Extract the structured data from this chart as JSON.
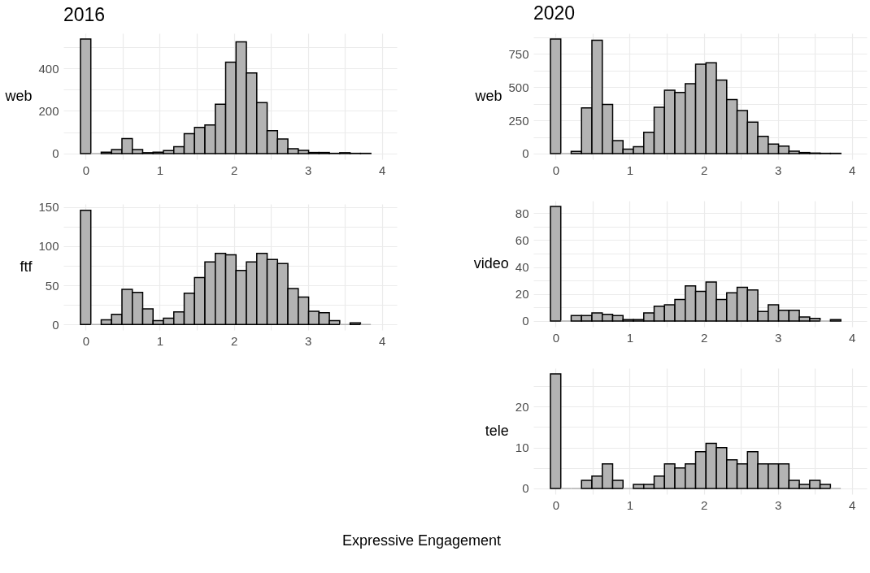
{
  "chart_data": [
    {
      "type": "histogram",
      "title": "2016",
      "ylabel": "web",
      "color": "#b3b3b3",
      "grid": true,
      "bins": [
        -0.07,
        0.07,
        0.21,
        0.35,
        0.49,
        0.63,
        0.77,
        0.91,
        1.05,
        1.19,
        1.33,
        1.47,
        1.61,
        1.75,
        1.89,
        2.03,
        2.17,
        2.31,
        2.45,
        2.59,
        2.73,
        2.87,
        3.01,
        3.15,
        3.29,
        3.43,
        3.57,
        3.71,
        3.85
      ],
      "values": [
        537,
        0,
        6,
        19,
        70,
        19,
        4,
        6,
        14,
        32,
        93,
        123,
        134,
        231,
        429,
        524,
        378,
        239,
        107,
        68,
        23,
        15,
        5,
        5,
        1,
        4,
        1,
        1
      ],
      "xlim": [
        -0.3,
        4.2
      ],
      "xticks": [
        0,
        {
          "value": 0.5,
          "label": null
        },
        1,
        {
          "value": 1.5,
          "label": null
        },
        2,
        {
          "value": 2.5,
          "label": null
        },
        3,
        {
          "value": 3.5,
          "label": null
        },
        4
      ],
      "ylim": [
        -27,
        564
      ],
      "yticks": [
        0,
        {
          "value": 100,
          "label": null
        },
        200,
        {
          "value": 300,
          "label": null
        },
        400,
        {
          "value": 500,
          "label": null
        }
      ]
    },
    {
      "type": "histogram",
      "ylabel": "ftf",
      "color": "#b3b3b3",
      "grid": true,
      "bins": [
        -0.07,
        0.07,
        0.21,
        0.35,
        0.49,
        0.63,
        0.77,
        0.91,
        1.05,
        1.19,
        1.33,
        1.47,
        1.61,
        1.75,
        1.89,
        2.03,
        2.17,
        2.31,
        2.45,
        2.59,
        2.73,
        2.87,
        3.01,
        3.15,
        3.29,
        3.43,
        3.57,
        3.71,
        3.85
      ],
      "values": [
        146,
        0,
        6,
        13,
        45,
        41,
        20,
        5,
        8,
        16,
        40,
        60,
        80,
        91,
        89,
        69,
        80,
        91,
        83,
        78,
        46,
        35,
        17,
        15,
        5,
        0,
        2,
        0
      ],
      "xlim": [
        -0.3,
        4.2
      ],
      "xticks": [
        0,
        {
          "value": 0.5,
          "label": null
        },
        1,
        {
          "value": 1.5,
          "label": null
        },
        2,
        {
          "value": 2.5,
          "label": null
        },
        3,
        {
          "value": 3.5,
          "label": null
        },
        4
      ],
      "ylim": [
        -7,
        154
      ],
      "yticks": [
        0,
        {
          "value": 25,
          "label": null
        },
        50,
        {
          "value": 75,
          "label": null
        },
        100,
        {
          "value": 125,
          "label": null
        },
        150
      ]
    },
    {
      "type": "histogram",
      "title": "2020",
      "ylabel": "web",
      "color": "#b3b3b3",
      "grid": true,
      "bins": [
        -0.07,
        0.07,
        0.21,
        0.35,
        0.49,
        0.63,
        0.77,
        0.91,
        1.05,
        1.19,
        1.33,
        1.47,
        1.61,
        1.75,
        1.89,
        2.03,
        2.17,
        2.31,
        2.45,
        2.59,
        2.73,
        2.87,
        3.01,
        3.15,
        3.29,
        3.43,
        3.57,
        3.71,
        3.85
      ],
      "values": [
        861,
        0,
        16,
        344,
        852,
        369,
        98,
        33,
        51,
        160,
        348,
        477,
        459,
        525,
        672,
        682,
        553,
        406,
        324,
        236,
        129,
        72,
        57,
        18,
        8,
        4,
        2,
        2
      ],
      "xlim": [
        -0.3,
        4.2
      ],
      "xticks": [
        0,
        {
          "value": 0.5,
          "label": null
        },
        1,
        {
          "value": 1.5,
          "label": null
        },
        2,
        {
          "value": 2.5,
          "label": null
        },
        3,
        {
          "value": 3.5,
          "label": null
        },
        4
      ],
      "ylim": [
        -43,
        904
      ],
      "yticks": [
        0,
        {
          "value": 125,
          "label": null
        },
        250,
        {
          "value": 375,
          "label": null
        },
        500,
        {
          "value": 625,
          "label": null
        },
        750,
        {
          "value": 875,
          "label": null
        }
      ]
    },
    {
      "type": "histogram",
      "ylabel": "video",
      "color": "#b3b3b3",
      "grid": true,
      "bins": [
        -0.07,
        0.07,
        0.21,
        0.35,
        0.49,
        0.63,
        0.77,
        0.91,
        1.05,
        1.19,
        1.33,
        1.47,
        1.61,
        1.75,
        1.89,
        2.03,
        2.17,
        2.31,
        2.45,
        2.59,
        2.73,
        2.87,
        3.01,
        3.15,
        3.29,
        3.43,
        3.57,
        3.71,
        3.85
      ],
      "values": [
        85,
        0,
        4,
        4,
        6,
        5,
        4,
        1,
        1,
        6,
        11,
        12,
        16,
        26,
        22,
        29,
        16,
        21,
        25,
        23,
        7,
        12,
        8,
        8,
        3,
        2,
        0,
        1
      ],
      "xlim": [
        -0.3,
        4.2
      ],
      "xticks": [
        0,
        {
          "value": 0.5,
          "label": null
        },
        1,
        {
          "value": 1.5,
          "label": null
        },
        2,
        {
          "value": 2.5,
          "label": null
        },
        3,
        {
          "value": 3.5,
          "label": null
        },
        4
      ],
      "ylim": [
        -4.25,
        89.25
      ],
      "yticks": [
        0,
        {
          "value": 10,
          "label": null
        },
        20,
        {
          "value": 30,
          "label": null
        },
        40,
        {
          "value": 50,
          "label": null
        },
        60,
        {
          "value": 70,
          "label": null
        },
        80
      ]
    },
    {
      "type": "histogram",
      "ylabel": "tele",
      "xlabel": "Expressive Engagement",
      "color": "#b3b3b3",
      "grid": true,
      "bins": [
        -0.07,
        0.07,
        0.21,
        0.35,
        0.49,
        0.63,
        0.77,
        0.91,
        1.05,
        1.19,
        1.33,
        1.47,
        1.61,
        1.75,
        1.89,
        2.03,
        2.17,
        2.31,
        2.45,
        2.59,
        2.73,
        2.87,
        3.01,
        3.15,
        3.29,
        3.43,
        3.57,
        3.71,
        3.85
      ],
      "values": [
        28,
        0,
        0,
        2,
        3,
        6,
        2,
        0,
        1,
        1,
        3,
        6,
        5,
        6,
        9,
        11,
        10,
        7,
        6,
        9,
        6,
        6,
        6,
        2,
        1,
        2,
        1,
        0
      ],
      "xlim": [
        -0.3,
        4.2
      ],
      "xticks": [
        0,
        {
          "value": 0.5,
          "label": null
        },
        1,
        {
          "value": 1.5,
          "label": null
        },
        2,
        {
          "value": 2.5,
          "label": null
        },
        3,
        {
          "value": 3.5,
          "label": null
        },
        4
      ],
      "ylim": [
        -1.4,
        29.4
      ],
      "yticks": [
        0,
        {
          "value": 5,
          "label": null
        },
        10,
        {
          "value": 15,
          "label": null
        },
        20,
        {
          "value": 25,
          "label": null
        }
      ]
    }
  ]
}
